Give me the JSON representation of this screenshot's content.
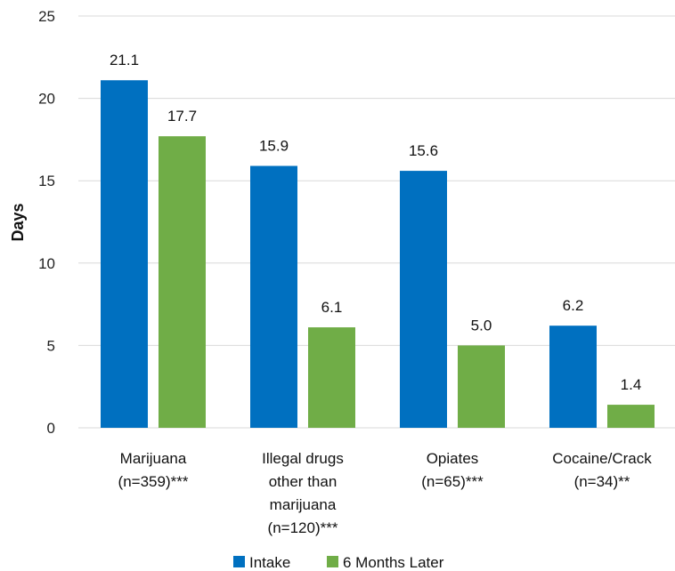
{
  "chart_data": {
    "type": "bar",
    "categories": [
      "Marijuana (n=359)***",
      "Illegal drugs other than marijuana (n=120)***",
      "Opiates (n=65)***",
      "Cocaine/Crack (n=34)**"
    ],
    "category_lines": [
      [
        "Marijuana",
        "(n=359)***"
      ],
      [
        "Illegal drugs",
        "other than",
        "marijuana",
        "(n=120)***"
      ],
      [
        "Opiates",
        "(n=65)***"
      ],
      [
        "Cocaine/Crack",
        "(n=34)**"
      ]
    ],
    "series": [
      {
        "name": "Intake",
        "color": "#0070C0",
        "values": [
          21.1,
          15.9,
          15.6,
          6.2
        ],
        "labels": [
          "21.1",
          "15.9",
          "15.6",
          "6.2"
        ]
      },
      {
        "name": "6 Months Later",
        "color": "#70AD47",
        "values": [
          17.7,
          6.1,
          5.0,
          1.4
        ],
        "labels": [
          "17.7",
          "6.1",
          "5.0",
          "1.4"
        ]
      }
    ],
    "ylabel": "Days",
    "ylim": [
      0,
      25
    ],
    "yticks": [
      "0",
      "5",
      "10",
      "15",
      "20",
      "25"
    ],
    "grid": true,
    "gridline_color": "#D9D9D9",
    "legend_position": "bottom"
  }
}
